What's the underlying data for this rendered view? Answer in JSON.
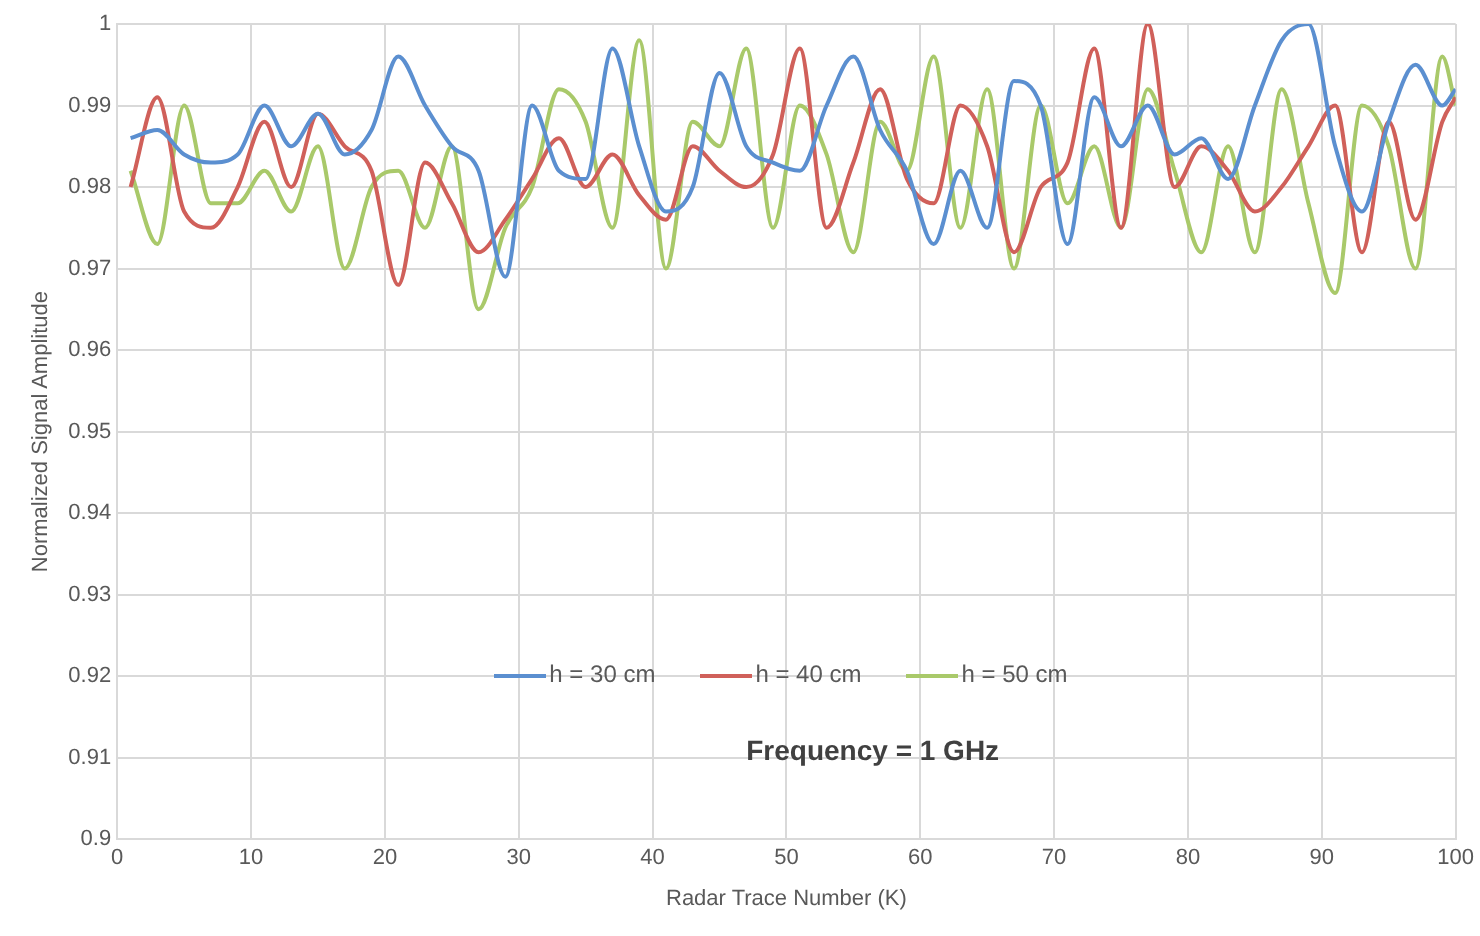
{
  "chart_data": {
    "type": "line",
    "xlabel": "Radar Trace Number (K)",
    "ylabel": "Normalized Signal Amplitude",
    "x": [
      1,
      3,
      5,
      7,
      9,
      11,
      13,
      15,
      17,
      19,
      21,
      23,
      25,
      27,
      29,
      31,
      33,
      35,
      37,
      39,
      41,
      43,
      45,
      47,
      49,
      51,
      53,
      55,
      57,
      59,
      61,
      63,
      65,
      67,
      69,
      71,
      73,
      75,
      77,
      79,
      81,
      83,
      85,
      87,
      89,
      91,
      93,
      95,
      97,
      99,
      100
    ],
    "series": [
      {
        "name": "h = 30 cm",
        "color": "#5b8fd0",
        "values": [
          0.986,
          0.987,
          0.984,
          0.983,
          0.984,
          0.99,
          0.985,
          0.989,
          0.984,
          0.987,
          0.996,
          0.99,
          0.985,
          0.982,
          0.969,
          0.99,
          0.982,
          0.981,
          0.997,
          0.985,
          0.977,
          0.98,
          0.994,
          0.985,
          0.983,
          0.982,
          0.99,
          0.996,
          0.987,
          0.982,
          0.973,
          0.982,
          0.975,
          0.993,
          0.99,
          0.973,
          0.991,
          0.985,
          0.99,
          0.984,
          0.986,
          0.981,
          0.99,
          0.998,
          1.0,
          0.985,
          0.977,
          0.988,
          0.995,
          0.99,
          0.992
        ]
      },
      {
        "name": "h = 40 cm",
        "color": "#d0605a",
        "values": [
          0.98,
          0.991,
          0.977,
          0.975,
          0.98,
          0.988,
          0.98,
          0.989,
          0.985,
          0.982,
          0.968,
          0.983,
          0.978,
          0.972,
          0.976,
          0.981,
          0.986,
          0.98,
          0.984,
          0.979,
          0.976,
          0.985,
          0.982,
          0.98,
          0.984,
          0.997,
          0.975,
          0.983,
          0.992,
          0.981,
          0.978,
          0.99,
          0.985,
          0.972,
          0.98,
          0.983,
          0.997,
          0.975,
          1.0,
          0.98,
          0.985,
          0.982,
          0.977,
          0.98,
          0.985,
          0.99,
          0.972,
          0.988,
          0.976,
          0.988,
          0.991
        ]
      },
      {
        "name": "h = 50 cm",
        "color": "#a9c96a",
        "values": [
          0.982,
          0.973,
          0.99,
          0.978,
          0.978,
          0.982,
          0.977,
          0.985,
          0.97,
          0.98,
          0.982,
          0.975,
          0.985,
          0.965,
          0.975,
          0.98,
          0.992,
          0.988,
          0.975,
          0.998,
          0.97,
          0.988,
          0.985,
          0.997,
          0.975,
          0.99,
          0.984,
          0.972,
          0.988,
          0.982,
          0.996,
          0.975,
          0.992,
          0.97,
          0.99,
          0.978,
          0.985,
          0.975,
          0.992,
          0.982,
          0.972,
          0.985,
          0.972,
          0.992,
          0.978,
          0.967,
          0.99,
          0.985,
          0.97,
          0.996,
          0.99
        ]
      }
    ],
    "xlim": [
      0,
      100
    ],
    "xticks": [
      0,
      10,
      20,
      30,
      40,
      50,
      60,
      70,
      80,
      90,
      100
    ],
    "ylim": [
      0.9,
      1
    ],
    "yticks": [
      0.9,
      0.91,
      0.92,
      0.93,
      0.94,
      0.95,
      0.96,
      0.97,
      0.98,
      0.99,
      1
    ],
    "grid": true,
    "legend": "bottom",
    "marker": "none",
    "line_style": "solid",
    "annotations": [
      "Frequency = 1 GHz"
    ]
  }
}
